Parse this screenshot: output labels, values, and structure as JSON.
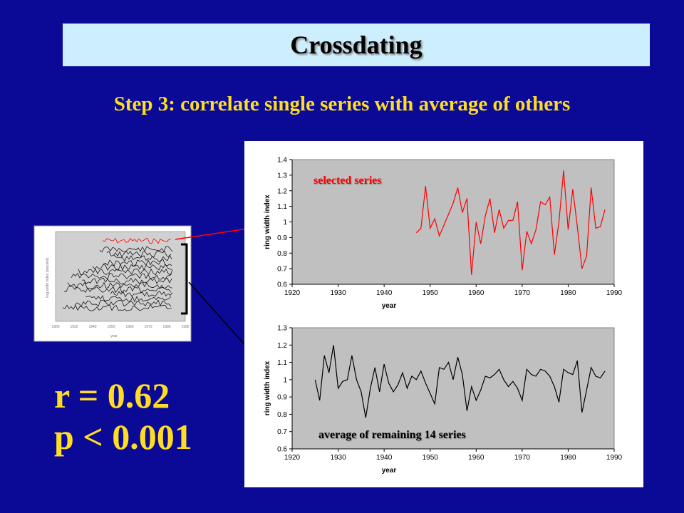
{
  "slide": {
    "title": "Crossdating",
    "subtitle": "Step 3: correlate single series with average of others",
    "stat_r": "r = 0.62",
    "stat_p": "p < 0.001"
  },
  "colors": {
    "background": "#0a0a96",
    "title_bar": "#cdeefc",
    "accent_text": "#ffdd22",
    "selected_series": "#ff0000",
    "average_series": "#000000",
    "plot_area": "#c0c0c0"
  },
  "thumbnail": {
    "ylabel": "ring width index (stacked)",
    "xlabel": "year",
    "x_ticks": [
      "1900",
      "1920",
      "1940",
      "1950",
      "1960",
      "1970",
      "1980",
      "1990"
    ]
  },
  "chart_data": [
    {
      "type": "line",
      "annotation": "selected series",
      "xlabel": "year",
      "ylabel": "ring width index",
      "xlim": [
        1920,
        1990
      ],
      "ylim": [
        0.6,
        1.4
      ],
      "x_ticks": [
        1920,
        1930,
        1940,
        1950,
        1960,
        1970,
        1980,
        1990
      ],
      "y_ticks": [
        0.6,
        0.7,
        0.8,
        0.9,
        1.0,
        1.1,
        1.2,
        1.3,
        1.4
      ],
      "x_tick_labels": [
        "1920",
        "1930",
        "1940",
        "1950",
        "1960",
        "1970",
        "1980",
        "1990"
      ],
      "y_tick_labels": [
        "0.6",
        "0.7",
        "0.8",
        "0.9",
        "1",
        "1.1",
        "1.2",
        "1.3",
        "1.4"
      ],
      "grid": false,
      "series": [
        {
          "color": "#ff0000",
          "x": [
            1947,
            1948,
            1949,
            1950,
            1951,
            1952,
            1953,
            1954,
            1955,
            1956,
            1957,
            1958,
            1959,
            1960,
            1961,
            1962,
            1963,
            1964,
            1965,
            1966,
            1967,
            1968,
            1969,
            1970,
            1971,
            1972,
            1973,
            1974,
            1975,
            1976,
            1977,
            1978,
            1979,
            1980,
            1981,
            1982,
            1983,
            1984,
            1985,
            1986,
            1987,
            1988
          ],
          "y": [
            0.93,
            0.96,
            1.23,
            0.96,
            1.02,
            0.91,
            0.98,
            1.05,
            1.12,
            1.22,
            1.06,
            1.15,
            0.66,
            1.0,
            0.86,
            1.04,
            1.15,
            0.93,
            1.08,
            0.96,
            1.01,
            1.01,
            1.13,
            0.69,
            0.94,
            0.86,
            0.95,
            1.13,
            1.11,
            1.16,
            0.79,
            1.0,
            1.33,
            0.95,
            1.21,
            0.97,
            0.7,
            0.78,
            1.22,
            0.96,
            0.97,
            1.08
          ]
        }
      ]
    },
    {
      "type": "line",
      "annotation": "average of remaining 14 series",
      "xlabel": "year",
      "ylabel": "ring width index",
      "xlim": [
        1920,
        1990
      ],
      "ylim": [
        0.6,
        1.3
      ],
      "x_ticks": [
        1920,
        1930,
        1940,
        1950,
        1960,
        1970,
        1980,
        1990
      ],
      "y_ticks": [
        0.6,
        0.7,
        0.8,
        0.9,
        1.0,
        1.1,
        1.2,
        1.3
      ],
      "x_tick_labels": [
        "1920",
        "1930",
        "1940",
        "1950",
        "1960",
        "1970",
        "1980",
        "1990"
      ],
      "y_tick_labels": [
        "0.6",
        "0.7",
        "0.8",
        "0.9",
        "1",
        "1.1",
        "1.2",
        "1.3"
      ],
      "grid": false,
      "series": [
        {
          "color": "#000000",
          "x": [
            1925,
            1926,
            1927,
            1928,
            1929,
            1930,
            1931,
            1932,
            1933,
            1934,
            1935,
            1936,
            1937,
            1938,
            1939,
            1940,
            1941,
            1942,
            1943,
            1944,
            1945,
            1946,
            1947,
            1948,
            1949,
            1950,
            1951,
            1952,
            1953,
            1954,
            1955,
            1956,
            1957,
            1958,
            1959,
            1960,
            1961,
            1962,
            1963,
            1964,
            1965,
            1966,
            1967,
            1968,
            1969,
            1970,
            1971,
            1972,
            1973,
            1974,
            1975,
            1976,
            1977,
            1978,
            1979,
            1980,
            1981,
            1982,
            1983,
            1984,
            1985,
            1986,
            1987,
            1988
          ],
          "y": [
            1.0,
            0.88,
            1.14,
            1.04,
            1.2,
            0.95,
            0.99,
            1.0,
            1.14,
            1.0,
            0.93,
            0.78,
            0.95,
            1.07,
            0.93,
            1.09,
            0.98,
            0.93,
            0.97,
            1.04,
            0.95,
            1.02,
            1.0,
            1.05,
            0.98,
            0.92,
            0.86,
            1.07,
            1.06,
            1.1,
            1.0,
            1.13,
            1.03,
            0.82,
            0.96,
            0.88,
            0.94,
            1.02,
            1.01,
            1.03,
            1.06,
            1.0,
            0.96,
            0.99,
            0.95,
            0.88,
            1.06,
            1.03,
            1.02,
            1.06,
            1.05,
            1.02,
            0.96,
            0.87,
            1.06,
            1.04,
            1.03,
            1.11,
            0.81,
            0.94,
            1.07,
            1.02,
            1.01,
            1.05
          ]
        }
      ]
    }
  ]
}
